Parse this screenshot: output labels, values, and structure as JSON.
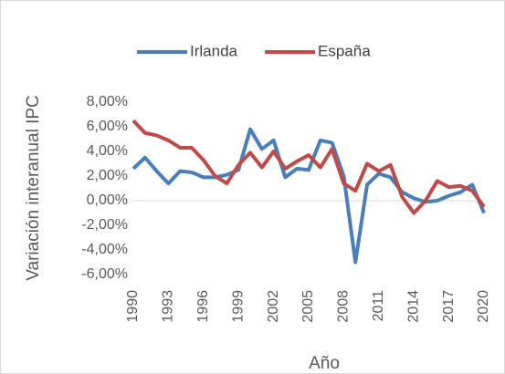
{
  "chart_data": {
    "type": "line",
    "x_label": "Año",
    "y_label": "Variación interanual IPC",
    "x": [
      1990,
      1991,
      1992,
      1993,
      1994,
      1995,
      1996,
      1997,
      1998,
      1999,
      2000,
      2001,
      2002,
      2003,
      2004,
      2005,
      2006,
      2007,
      2008,
      2009,
      2010,
      2011,
      2012,
      2013,
      2014,
      2015,
      2016,
      2017,
      2018,
      2019,
      2020
    ],
    "series": [
      {
        "name": "Irlanda",
        "color": "#4a7ebb",
        "values": [
          2.6,
          3.5,
          2.4,
          1.4,
          2.4,
          2.3,
          1.9,
          1.9,
          2.1,
          2.5,
          5.8,
          4.2,
          4.9,
          1.9,
          2.6,
          2.5,
          4.9,
          4.7,
          2.0,
          -5.0,
          1.3,
          2.2,
          1.9,
          0.7,
          0.2,
          -0.1,
          0.0,
          0.4,
          0.7,
          1.3,
          -1.0
        ]
      },
      {
        "name": "España",
        "color": "#be4b48",
        "values": [
          6.5,
          5.5,
          5.3,
          4.9,
          4.3,
          4.3,
          3.3,
          2.0,
          1.4,
          2.9,
          3.9,
          2.7,
          4.0,
          2.6,
          3.2,
          3.7,
          2.7,
          4.2,
          1.4,
          0.8,
          3.0,
          2.4,
          2.9,
          0.3,
          -1.0,
          0.0,
          1.6,
          1.1,
          1.2,
          0.8,
          -0.5
        ]
      }
    ],
    "xlim": [
      1990,
      2020
    ],
    "xticks": [
      1990,
      1993,
      1996,
      1999,
      2002,
      2005,
      2008,
      2011,
      2014,
      2017,
      2020
    ],
    "ylim": [
      -6,
      8
    ],
    "yticks": [
      {
        "value": -6,
        "label": "-6,00%"
      },
      {
        "value": -4,
        "label": "-4,00%"
      },
      {
        "value": -2,
        "label": "-2,00%"
      },
      {
        "value": 0,
        "label": "0,00%"
      },
      {
        "value": 2,
        "label": "2,00%"
      },
      {
        "value": 4,
        "label": "4,00%"
      },
      {
        "value": 6,
        "label": "6,00%"
      },
      {
        "value": 8,
        "label": "8,00%"
      }
    ],
    "legend": "top",
    "grid": false
  }
}
